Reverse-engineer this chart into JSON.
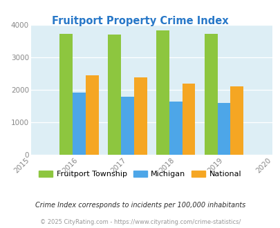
{
  "title": "Fruitport Property Crime Index",
  "title_color": "#2878c8",
  "years": [
    2016,
    2017,
    2018,
    2019
  ],
  "fruitport": [
    3720,
    3700,
    3840,
    3720
  ],
  "michigan": [
    1920,
    1800,
    1650,
    1610
  ],
  "national": [
    2460,
    2390,
    2190,
    2110
  ],
  "color_fruitport": "#8dc63f",
  "color_michigan": "#4da6e8",
  "color_national": "#f5a623",
  "xlim": [
    2015,
    2020
  ],
  "ylim": [
    0,
    4000
  ],
  "yticks": [
    0,
    1000,
    2000,
    3000,
    4000
  ],
  "xticks": [
    2015,
    2016,
    2017,
    2018,
    2019,
    2020
  ],
  "bg_color": "#ddeef5",
  "fig_bg_color": "#ffffff",
  "bar_width": 0.27,
  "legend_labels": [
    "Fruitport Township",
    "Michigan",
    "National"
  ],
  "footnote1": "Crime Index corresponds to incidents per 100,000 inhabitants",
  "footnote2": "© 2025 CityRating.com - https://www.cityrating.com/crime-statistics/",
  "footnote1_color": "#2c2c2c",
  "footnote2_color": "#999999"
}
